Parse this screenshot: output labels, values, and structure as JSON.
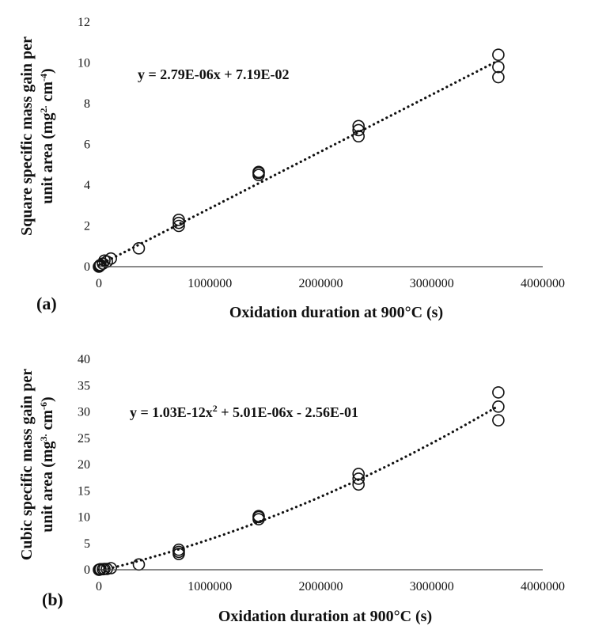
{
  "chart_data": [
    {
      "panel": "(a)",
      "type": "scatter",
      "xlabel": "Oxidation duration at 900°C (s)",
      "ylabel_parts": [
        "Square specific mass gain per",
        "unit area (mg",
        "2.",
        " cm",
        "-4",
        ")"
      ],
      "equation": "y = 2.79E-06x + 7.19E-02",
      "xlim": [
        0,
        4000000
      ],
      "ylim": [
        0,
        12
      ],
      "xticks": [
        0,
        1000000,
        2000000,
        3000000,
        4000000
      ],
      "yticks": [
        0,
        2,
        4,
        6,
        8,
        10,
        12
      ],
      "trendline": {
        "kind": "linear",
        "a": 0,
        "b": 2.79e-06,
        "c": 0.0719
      },
      "points": [
        {
          "x": 0,
          "y": 0.0
        },
        {
          "x": 3600,
          "y": 0.02
        },
        {
          "x": 7200,
          "y": 0.05
        },
        {
          "x": 14400,
          "y": 0.08
        },
        {
          "x": 36000,
          "y": 0.15
        },
        {
          "x": 50000,
          "y": 0.3
        },
        {
          "x": 72000,
          "y": 0.25
        },
        {
          "x": 108000,
          "y": 0.4
        },
        {
          "x": 360000,
          "y": 0.9
        },
        {
          "x": 720000,
          "y": 2.0
        },
        {
          "x": 720000,
          "y": 2.15
        },
        {
          "x": 720000,
          "y": 2.3
        },
        {
          "x": 1440000,
          "y": 4.5
        },
        {
          "x": 1440000,
          "y": 4.6
        },
        {
          "x": 1440000,
          "y": 4.65
        },
        {
          "x": 2340000,
          "y": 6.4
        },
        {
          "x": 2340000,
          "y": 6.7
        },
        {
          "x": 2340000,
          "y": 6.9
        },
        {
          "x": 3600000,
          "y": 9.3
        },
        {
          "x": 3600000,
          "y": 9.8
        },
        {
          "x": 3600000,
          "y": 10.4
        }
      ]
    },
    {
      "panel": "(b)",
      "type": "scatter",
      "xlabel": "Oxidation duration at 900°C (s)",
      "ylabel_parts": [
        "Cubic specific mass gain per",
        "unit area (mg",
        "3.",
        " cm",
        "-6",
        ")"
      ],
      "equation_parts": [
        "y = 1.03E-12x",
        "2",
        " + 5.01E-06x - 2.56E-01"
      ],
      "xlim": [
        0,
        4000000
      ],
      "ylim": [
        0,
        40
      ],
      "xticks": [
        0,
        1000000,
        2000000,
        3000000,
        4000000
      ],
      "yticks": [
        0,
        5,
        10,
        15,
        20,
        25,
        30,
        35,
        40
      ],
      "trendline": {
        "kind": "quadratic",
        "a": 1.03e-12,
        "b": 5.01e-06,
        "c": -0.256
      },
      "points": [
        {
          "x": 0,
          "y": 0.0
        },
        {
          "x": 3600,
          "y": 0.0
        },
        {
          "x": 7200,
          "y": 0.05
        },
        {
          "x": 14400,
          "y": 0.1
        },
        {
          "x": 36000,
          "y": 0.1
        },
        {
          "x": 50000,
          "y": 0.15
        },
        {
          "x": 72000,
          "y": 0.15
        },
        {
          "x": 108000,
          "y": 0.3
        },
        {
          "x": 360000,
          "y": 1.0
        },
        {
          "x": 720000,
          "y": 3.0
        },
        {
          "x": 720000,
          "y": 3.4
        },
        {
          "x": 720000,
          "y": 3.8
        },
        {
          "x": 1440000,
          "y": 9.6
        },
        {
          "x": 1440000,
          "y": 10.0
        },
        {
          "x": 1440000,
          "y": 10.2
        },
        {
          "x": 2340000,
          "y": 16.2
        },
        {
          "x": 2340000,
          "y": 17.3
        },
        {
          "x": 2340000,
          "y": 18.2
        },
        {
          "x": 3600000,
          "y": 28.4
        },
        {
          "x": 3600000,
          "y": 31.0
        },
        {
          "x": 3600000,
          "y": 33.7
        }
      ]
    }
  ]
}
